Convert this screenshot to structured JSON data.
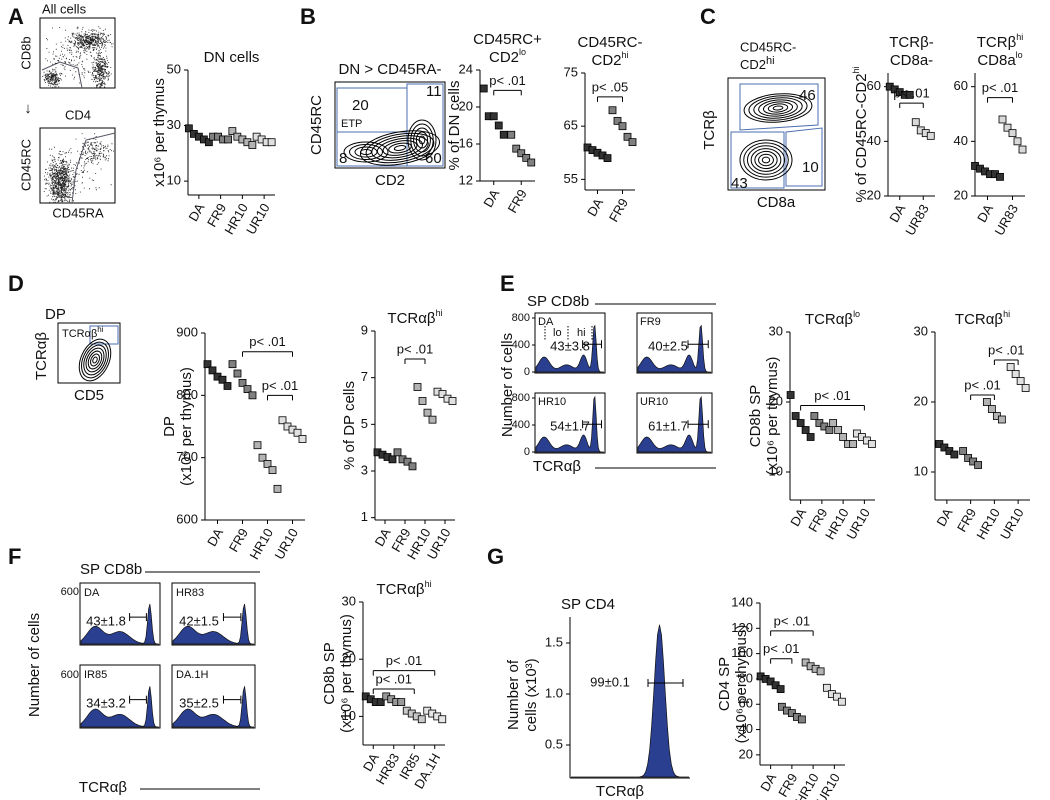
{
  "chart_data": [
    {
      "type": "strip",
      "title": [
        [
          "DN cells"
        ]
      ],
      "ylabel": [
        [
          "x10⁶ per thymus"
        ]
      ],
      "categories": [
        "DA",
        "FR9",
        "HR10",
        "UR10"
      ],
      "colors": [
        "#333333",
        "#808080",
        "#b3b3b3",
        "#e0e0e0"
      ],
      "values": [
        [
          29,
          27,
          26,
          25,
          24
        ],
        [
          26,
          26,
          25,
          25
        ],
        [
          28,
          26,
          25,
          24,
          23
        ],
        [
          26,
          25,
          24,
          24
        ]
      ],
      "ylim": [
        5,
        50
      ],
      "yticks": [
        10,
        30,
        50
      ]
    },
    {
      "type": "strip",
      "title": [
        [
          "CD45RC+"
        ],
        [
          "CD2",
          "lo"
        ]
      ],
      "ylabel": [
        [
          "% of DN cells"
        ]
      ],
      "categories": [
        "DA",
        "FR9"
      ],
      "colors": [
        "#333333",
        "#808080"
      ],
      "values": [
        [
          22,
          19,
          19,
          18,
          17
        ],
        [
          17,
          15.5,
          15,
          14.5,
          14
        ]
      ],
      "ylim": [
        12,
        24
      ],
      "yticks": [
        12,
        16,
        20,
        24
      ],
      "brackets": [
        {
          "text": "p< .01",
          "from": "DA",
          "to": "FR9",
          "y": 21.8
        }
      ]
    },
    {
      "type": "strip",
      "title": [
        [
          "CD45RC-"
        ],
        [
          "CD2",
          "hi"
        ]
      ],
      "categories": [
        "DA",
        "FR9"
      ],
      "colors": [
        "#333333",
        "#808080"
      ],
      "values": [
        [
          61,
          60.5,
          60,
          59.5,
          59
        ],
        [
          68,
          66,
          65,
          63,
          62
        ]
      ],
      "ylim": [
        53,
        75
      ],
      "yticks": [
        55,
        65,
        75
      ],
      "brackets": [
        {
          "text": "p< .05",
          "from": "DA",
          "to": "FR9",
          "y": 70.5
        }
      ]
    },
    {
      "type": "strip",
      "title": [
        [
          "TCRβ-"
        ],
        [
          "CD8a-"
        ]
      ],
      "ylabel": [
        [
          "% of CD45RC-CD2",
          "hi"
        ]
      ],
      "categories": [
        "DA",
        "UR83"
      ],
      "colors": [
        "#333333",
        "#d9d9d9"
      ],
      "values": [
        [
          60,
          59,
          58,
          57,
          57
        ],
        [
          47,
          44,
          43,
          42
        ]
      ],
      "ylim": [
        20,
        65
      ],
      "yticks": [
        20,
        40,
        60
      ],
      "brackets": [
        {
          "text": "p< .01",
          "from": "DA",
          "to": "UR83",
          "y": 54
        }
      ]
    },
    {
      "type": "strip",
      "title": [
        [
          "TCRβ",
          "hi"
        ],
        [
          "CD8a",
          "lo"
        ]
      ],
      "categories": [
        "DA",
        "UR83"
      ],
      "colors": [
        "#333333",
        "#d9d9d9"
      ],
      "values": [
        [
          31,
          30,
          29,
          28,
          28,
          27
        ],
        [
          48,
          45,
          43,
          40,
          37
        ]
      ],
      "ylim": [
        20,
        65
      ],
      "yticks": [
        20,
        40,
        60
      ],
      "brackets": [
        {
          "text": "p< .01",
          "from": "DA",
          "to": "UR83",
          "y": 56
        }
      ]
    },
    {
      "type": "strip",
      "ylabel": [
        [
          "DP"
        ],
        [
          "(x10⁶ per thymus)"
        ]
      ],
      "categories": [
        "DA",
        "FR9",
        "HR10",
        "UR10"
      ],
      "colors": [
        "#333333",
        "#808080",
        "#b3b3b3",
        "#e0e0e0"
      ],
      "values": [
        [
          850,
          840,
          830,
          825,
          815
        ],
        [
          850,
          835,
          820,
          810,
          800
        ],
        [
          720,
          700,
          690,
          680,
          650
        ],
        [
          760,
          750,
          745,
          740,
          730
        ]
      ],
      "ylim": [
        600,
        900
      ],
      "yticks": [
        600,
        700,
        800,
        900
      ],
      "brackets": [
        {
          "text": "p< .01",
          "from": "FR9",
          "to": "UR10",
          "y": 870
        },
        {
          "text": "p< .01",
          "from": "HR10",
          "to": "UR10",
          "y": 800
        }
      ]
    },
    {
      "type": "strip",
      "title": [
        [
          "TCRαβ",
          "hi"
        ]
      ],
      "ylabel": [
        [
          "% of DP cells"
        ]
      ],
      "categories": [
        "DA",
        "FR9",
        "HR10",
        "UR10"
      ],
      "colors": [
        "#333333",
        "#808080",
        "#b3b3b3",
        "#e0e0e0"
      ],
      "values": [
        [
          3.8,
          3.7,
          3.6,
          3.5
        ],
        [
          3.8,
          3.5,
          3.4,
          3.2
        ],
        [
          6.6,
          6,
          5.5,
          5.2
        ],
        [
          6.4,
          6.3,
          6.1,
          6
        ]
      ],
      "ylim": [
        0.9,
        9
      ],
      "yticks": [
        1,
        3,
        5,
        7,
        9
      ],
      "brackets": [
        {
          "text": "p< .01",
          "from": "FR9",
          "to": "HR10",
          "y": 7.8
        }
      ]
    },
    {
      "type": "strip",
      "title": [
        [
          "TCRαβ",
          "lo"
        ]
      ],
      "ylabel": [
        [
          "CD8b SP"
        ],
        [
          "(x10⁶ per thymus)"
        ]
      ],
      "categories": [
        "DA",
        "FR9",
        "HR10",
        "UR10"
      ],
      "colors": [
        "#333333",
        "#808080",
        "#b3b3b3",
        "#e0e0e0"
      ],
      "values": [
        [
          21,
          18,
          17,
          16,
          15
        ],
        [
          18,
          17,
          16.5,
          16
        ],
        [
          17,
          16,
          15,
          14,
          14
        ],
        [
          15.5,
          15,
          14.5,
          14
        ]
      ],
      "ylim": [
        6,
        30
      ],
      "yticks": [
        10,
        20,
        30
      ],
      "brackets": [
        {
          "text": "p< .01",
          "from": "DA",
          "to": "UR10",
          "y": 19.5
        }
      ]
    },
    {
      "type": "strip",
      "title": [
        [
          "TCRαβ",
          "hi"
        ]
      ],
      "categories": [
        "DA",
        "FR9",
        "HR10",
        "UR10"
      ],
      "colors": [
        "#333333",
        "#808080",
        "#b3b3b3",
        "#e0e0e0"
      ],
      "values": [
        [
          14,
          13.5,
          13,
          12.5
        ],
        [
          13,
          12,
          11.5,
          11
        ],
        [
          20,
          19,
          18,
          17.5
        ],
        [
          25,
          24,
          23,
          22
        ]
      ],
      "ylim": [
        6,
        30
      ],
      "yticks": [
        10,
        20,
        30
      ],
      "brackets": [
        {
          "text": "p< .01",
          "from": "FR9",
          "to": "HR10",
          "y": 21
        },
        {
          "text": "p< .01",
          "from": "HR10",
          "to": "UR10",
          "y": 26
        }
      ]
    },
    {
      "type": "strip",
      "title": [
        [
          "TCRαβ",
          "hi"
        ]
      ],
      "ylabel": [
        [
          "CD8b SP"
        ],
        [
          "(x10⁶ per thymus)"
        ]
      ],
      "categories": [
        "DA",
        "HR83",
        "IR85",
        "DA.1H"
      ],
      "colors": [
        "#333333",
        "#999999",
        "#c8c8c8",
        "#e6e6e6"
      ],
      "values": [
        [
          13.5,
          13,
          12.5,
          12.5
        ],
        [
          13.5,
          13,
          12.5,
          12.5
        ],
        [
          11,
          10.5,
          10,
          9.5
        ],
        [
          11,
          10.5,
          10,
          9.5
        ]
      ],
      "ylim": [
        5,
        30
      ],
      "yticks": [
        10,
        20,
        30
      ],
      "brackets": [
        {
          "text": "p< .01",
          "from": "DA",
          "to": "DA.1H",
          "y": 18
        },
        {
          "text": "p< .01",
          "from": "DA",
          "to": "IR85",
          "y": 14.8
        }
      ]
    },
    {
      "type": "strip",
      "ylabel": [
        [
          "CD4 SP"
        ],
        [
          "(x10⁶ per thymus)"
        ]
      ],
      "categories": [
        "DA",
        "FR9",
        "HR10",
        "UR10"
      ],
      "colors": [
        "#333333",
        "#808080",
        "#b3b3b3",
        "#e0e0e0"
      ],
      "values": [
        [
          82,
          80,
          78,
          75,
          72
        ],
        [
          58,
          55,
          53,
          50,
          48
        ],
        [
          93,
          90,
          88,
          86
        ],
        [
          73,
          68,
          66,
          62
        ]
      ],
      "ylim": [
        12,
        140
      ],
      "yticks": [
        20,
        40,
        60,
        80,
        100,
        120,
        140
      ],
      "brackets": [
        {
          "text": "p< .01",
          "from": "DA",
          "to": "FR9",
          "y": 96
        },
        {
          "text": "p< .01",
          "from": "DA",
          "to": "HR10",
          "y": 118
        }
      ]
    }
  ],
  "panels": {
    "A": {
      "letter": "A",
      "plot_title": "All cells",
      "y1": "CD8b",
      "x1": "CD4",
      "y2": "CD45RC",
      "x2": "CD45RA"
    },
    "B": {
      "letter": "B",
      "gate": "DN > CD45RA-",
      "y": "CD45RC",
      "x": "CD2",
      "gates": [
        "20",
        "11",
        "8",
        "60"
      ],
      "etp": "ETP"
    },
    "C": {
      "letter": "C",
      "title": [
        [
          "CD45RC-"
        ],
        [
          "CD2",
          "hi"
        ]
      ],
      "y": "TCRβ",
      "x": "CD8a",
      "gates": [
        "46",
        "10",
        "43"
      ]
    },
    "D": {
      "letter": "D",
      "title": "DP",
      "gate": [
        "TCRαβ",
        "hi"
      ],
      "y": "TCRαβ",
      "x": "CD5"
    },
    "E": {
      "letter": "E",
      "title": "SP CD8b",
      "ylabel": "Number of cells",
      "xlabel": "TCRαβ",
      "yticks": [
        0,
        400,
        800
      ],
      "gate_labels": [
        "lo",
        "hi"
      ],
      "hists": [
        {
          "label": "DA",
          "value": "43±3.8"
        },
        {
          "label": "FR9",
          "value": "40±2.5"
        },
        {
          "label": "HR10",
          "value": "54±1.7"
        },
        {
          "label": "UR10",
          "value": "61±1.7"
        }
      ]
    },
    "F": {
      "letter": "F",
      "title": "SP CD8b",
      "ylabel": "Number of cells",
      "xlabel": "TCRαβ",
      "ytick": 600,
      "hists": [
        {
          "label": "DA",
          "value": "43±1.8"
        },
        {
          "label": "HR83",
          "value": "42±1.5"
        },
        {
          "label": "IR85",
          "value": "34±3.2"
        },
        {
          "label": "DA.1H",
          "value": "35±2.5"
        }
      ]
    },
    "G": {
      "letter": "G",
      "title": "SP CD4",
      "ylabel": [
        "Number of",
        "cells (x10³)"
      ],
      "xlabel": "TCRαβ",
      "yticks": [
        0.5,
        {
          "value": 1,
          "label": "1.0"
        },
        1.5
      ],
      "value": "99±0.1"
    }
  }
}
